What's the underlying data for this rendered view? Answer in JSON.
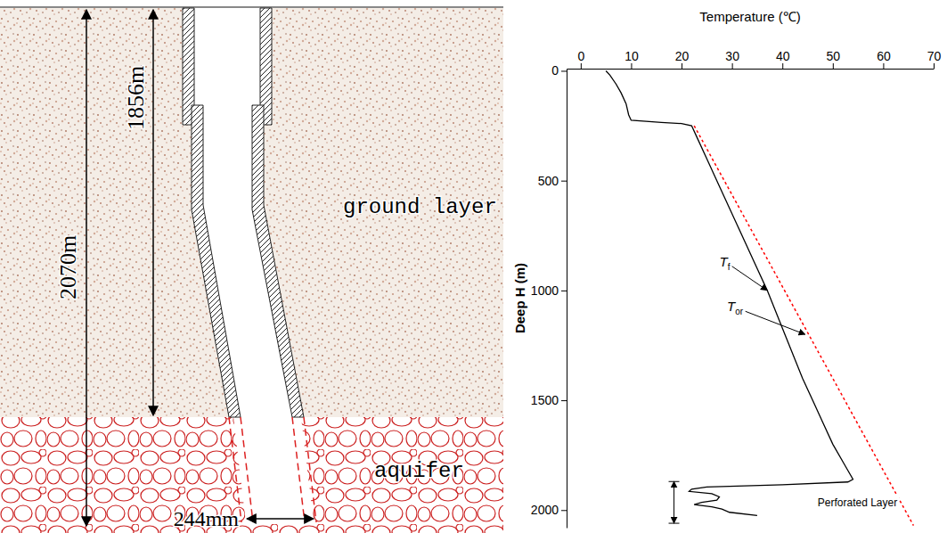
{
  "diagram": {
    "depth_labels": [
      "2070m",
      "1856m"
    ],
    "diameter_label": "244mm",
    "layer_labels": [
      "ground layer",
      "aquifer"
    ]
  },
  "chart_data": {
    "type": "line",
    "x_label": "Temperature (℃)",
    "y_label": "Deep H (m)",
    "xlim": [
      -2.8,
      70
    ],
    "xticks": [
      0,
      10,
      20,
      30,
      40,
      50,
      60,
      70
    ],
    "ylim": [
      -10,
      2080
    ],
    "yticks": [
      0,
      500,
      1000,
      1500,
      2000
    ],
    "grid": false,
    "series": [
      {
        "color": "#000000",
        "line_style": "solid",
        "x": [
          5,
          5.8,
          7,
          8,
          9,
          9.5,
          10,
          16,
          20,
          22,
          23,
          25,
          27,
          31,
          35,
          37,
          40.5,
          44,
          46,
          48,
          50,
          52.5,
          54,
          53,
          40,
          25,
          22,
          21.5,
          26,
          27.5,
          27,
          24,
          22.5,
          26,
          28,
          29.5,
          35
        ],
        "y": [
          0,
          20,
          60,
          100,
          150,
          200,
          225,
          235,
          240,
          250,
          300,
          400,
          500,
          700,
          900,
          1000,
          1200,
          1400,
          1500,
          1600,
          1700,
          1800,
          1860,
          1872,
          1885,
          1895,
          1905,
          1915,
          1925,
          1940,
          1955,
          1965,
          1975,
          1985,
          1995,
          2010,
          2025
        ]
      },
      {
        "color": "#ff0000",
        "line_style": "dotted",
        "x": [
          22.5,
          66
        ],
        "y": [
          250,
          2070
        ]
      }
    ],
    "annotations": [
      {
        "text": "Tf",
        "x": 27.5,
        "y": 890,
        "arrow_to": [
          37,
          1000
        ]
      },
      {
        "text": "Tor",
        "x": 29,
        "y": 1095,
        "arrow_to": [
          44.5,
          1200
        ]
      },
      {
        "text": "Perforated Layer",
        "x": 47,
        "y": 1965,
        "span": [
          1870,
          2060
        ],
        "span_x": 18.5
      }
    ]
  }
}
